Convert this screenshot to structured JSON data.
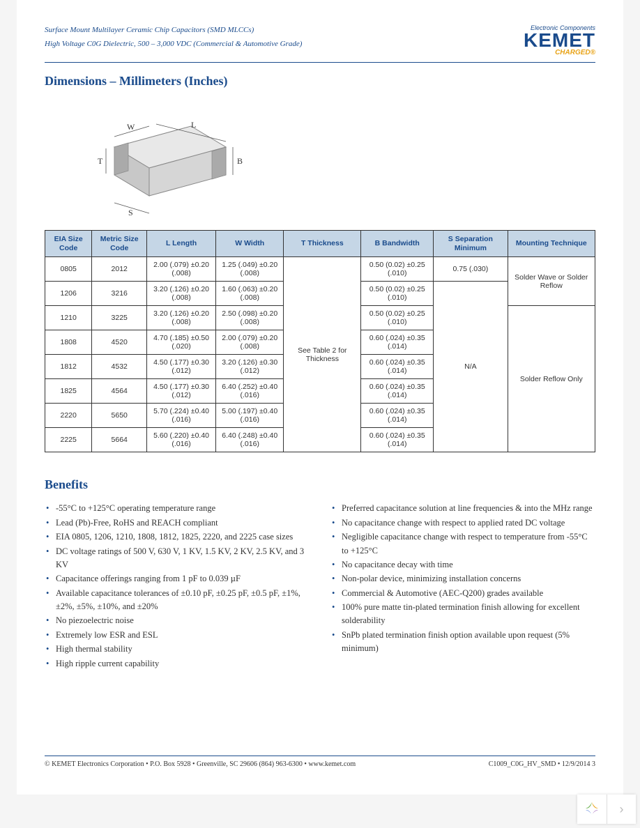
{
  "header": {
    "line1": "Surface Mount Multilayer Ceramic Chip Capacitors (SMD MLCCs)",
    "line2": "High Voltage C0G Dielectric, 500 – 3,000 VDC (Commercial & Automotive Grade)",
    "logo_tag": "Electronic Components",
    "logo_main": "KEMET",
    "logo_sub": "CHARGED®"
  },
  "colors": {
    "brand": "#1a4b8c",
    "accent": "#e8a317",
    "th_bg": "#c5d6e6",
    "border": "#333333"
  },
  "section_dimensions_title": "Dimensions – Millimeters (Inches)",
  "table": {
    "headers": [
      "EIA Size Code",
      "Metric Size Code",
      "L Length",
      "W Width",
      "T Thickness",
      "B Bandwidth",
      "S Separation Minimum",
      "Mounting Technique"
    ],
    "thickness_cell": "See Table 2 for Thickness",
    "sep_0805": "0.75 (.030)",
    "sep_na": "N/A",
    "mount_wave": "Solder Wave or Solder Reflow",
    "mount_reflow": "Solder Reflow Only",
    "rows": [
      {
        "eia": "0805",
        "metric": "2012",
        "l": "2.00 (.079) ±0.20 (.008)",
        "w": "1.25 (.049) ±0.20 (.008)",
        "b": "0.50 (0.02) ±0.25 (.010)"
      },
      {
        "eia": "1206",
        "metric": "3216",
        "l": "3.20 (.126) ±0.20 (.008)",
        "w": "1.60 (.063) ±0.20 (.008)",
        "b": "0.50 (0.02) ±0.25 (.010)"
      },
      {
        "eia": "1210",
        "metric": "3225",
        "l": "3.20 (.126) ±0.20 (.008)",
        "w": "2.50 (.098) ±0.20 (.008)",
        "b": "0.50 (0.02) ±0.25 (.010)"
      },
      {
        "eia": "1808",
        "metric": "4520",
        "l": "4.70 (.185) ±0.50 (.020)",
        "w": "2.00 (.079) ±0.20 (.008)",
        "b": "0.60 (.024) ±0.35 (.014)"
      },
      {
        "eia": "1812",
        "metric": "4532",
        "l": "4.50 (.177) ±0.30 (.012)",
        "w": "3.20 (.126) ±0.30 (.012)",
        "b": "0.60 (.024) ±0.35 (.014)"
      },
      {
        "eia": "1825",
        "metric": "4564",
        "l": "4.50 (.177) ±0.30 (.012)",
        "w": "6.40 (.252) ±0.40 (.016)",
        "b": "0.60 (.024) ±0.35 (.014)"
      },
      {
        "eia": "2220",
        "metric": "5650",
        "l": "5.70 (.224) ±0.40 (.016)",
        "w": "5.00 (.197) ±0.40 (.016)",
        "b": "0.60 (.024) ±0.35 (.014)"
      },
      {
        "eia": "2225",
        "metric": "5664",
        "l": "5.60 (.220) ±0.40 (.016)",
        "w": "6.40 (.248) ±0.40 (.016)",
        "b": "0.60 (.024) ±0.35 (.014)"
      }
    ]
  },
  "benefits_title": "Benefits",
  "benefits_left": [
    "-55°C to +125°C operating temperature range",
    "Lead (Pb)-Free, RoHS and REACH compliant",
    "EIA 0805, 1206, 1210, 1808, 1812, 1825, 2220, and 2225 case sizes",
    "DC voltage ratings of 500 V, 630 V, 1 KV, 1.5 KV, 2 KV, 2.5 KV, and 3 KV",
    "Capacitance offerings ranging from 1 pF to 0.039 µF",
    "Available capacitance tolerances of ±0.10 pF, ±0.25 pF, ±0.5 pF, ±1%, ±2%, ±5%, ±10%, and ±20%",
    "No piezoelectric noise",
    "Extremely low ESR and ESL",
    "High thermal stability",
    "High ripple current capability"
  ],
  "benefits_right": [
    "Preferred capacitance solution at line frequencies & into the MHz range",
    "No capacitance change with respect to applied rated DC voltage",
    "Negligible capacitance change with respect to temperature from -55°C to +125°C",
    "No capacitance decay with time",
    "Non-polar device, minimizing installation concerns",
    "Commercial & Automotive (AEC-Q200) grades available",
    "100% pure matte tin-plated termination finish allowing for excellent solderability",
    "SnPb plated termination finish option available upon request (5% minimum)"
  ],
  "footer": {
    "left": "© KEMET Electronics Corporation • P.O. Box 5928 • Greenville, SC 29606 (864) 963-6300 • www.kemet.com",
    "right": "C1009_C0G_HV_SMD • 12/9/2014      3"
  },
  "diagram": {
    "labels": {
      "W": "W",
      "L": "L",
      "T": "T",
      "B": "B",
      "S": "S"
    }
  }
}
